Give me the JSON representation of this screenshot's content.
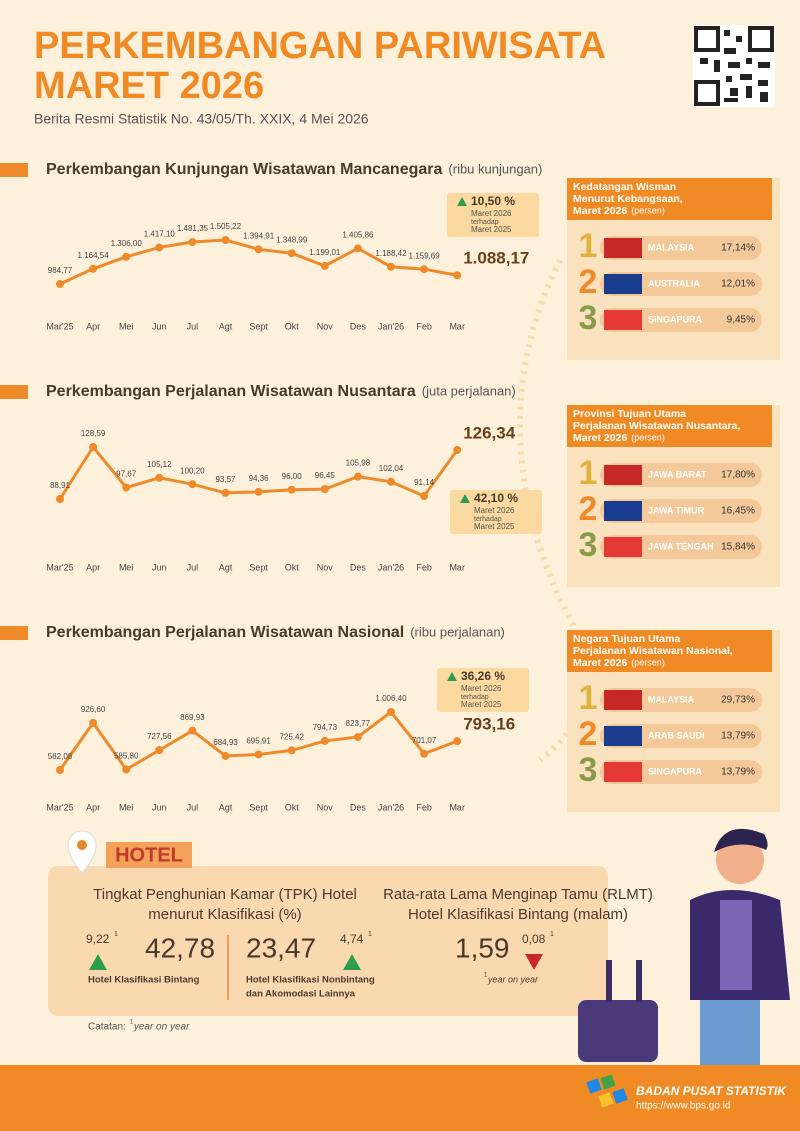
{
  "header": {
    "title_lines": [
      "PERKEMBANGAN PARIWISATA",
      "MARET 2026"
    ],
    "subtitle": "Berita Resmi Statistik No. 43/05/Th. XXIX, 4 Mei 2026"
  },
  "chart_data": [
    {
      "type": "line",
      "title": "Perkembangan Kunjungan Wisatawan Mancanegara",
      "unit": "(ribu kunjungan)",
      "color": "#ee8a2a",
      "categories": [
        "Mar'25",
        "Apr",
        "Mei",
        "Jun",
        "Jul",
        "Agt",
        "Sept",
        "Okt",
        "Nov",
        "Des",
        "Jan'26",
        "Feb",
        "Mar"
      ],
      "values": [
        984.77,
        1164.54,
        1306.0,
        1417.1,
        1481.35,
        1505.22,
        1394.91,
        1348.99,
        1199.01,
        1405.86,
        1188.42,
        1159.69,
        1088.17
      ],
      "value_labels": [
        "984,77",
        "1.164,54",
        "1.306,00",
        "1.417,10",
        "1.481,35",
        "1.505,22",
        "1.394,91",
        "1.348,99",
        "1.199,01",
        "1.405,86",
        "1.188,42",
        "1.159,69",
        "1.088,17"
      ],
      "change": {
        "label": "10,50 %",
        "lines": [
          "Maret 2026",
          "terhadap",
          "Maret 2025"
        ]
      }
    },
    {
      "type": "line",
      "title": "Perkembangan Perjalanan Wisatawan Nusantara",
      "unit": "(juta perjalanan)",
      "color": "#ee8a2a",
      "categories": [
        "Mar'25",
        "Apr",
        "Mei",
        "Jun",
        "Jul",
        "Agt",
        "Sept",
        "Okt",
        "Nov",
        "Des",
        "Jan'26",
        "Feb",
        "Mar"
      ],
      "values": [
        88.91,
        128.59,
        97.67,
        105.12,
        100.2,
        93.57,
        94.36,
        96.0,
        96.45,
        105.98,
        102.04,
        91.14,
        126.34
      ],
      "value_labels": [
        "88,91",
        "128,59",
        "97,67",
        "105,12",
        "100,20",
        "93,57",
        "94,36",
        "96,00",
        "96,45",
        "105,98",
        "102,04",
        "91,14",
        "126,34"
      ],
      "change": {
        "label": "42,10 %",
        "lines": [
          "Maret 2026",
          "terhadap",
          "Maret 2025"
        ]
      }
    },
    {
      "type": "line",
      "title": "Perkembangan Perjalanan Wisatawan Nasional",
      "unit": "(ribu perjalanan)",
      "color": "#ee8a2a",
      "categories": [
        "Mar'25",
        "Apr",
        "Mei",
        "Jun",
        "Jul",
        "Agt",
        "Sept",
        "Okt",
        "Nov",
        "Des",
        "Jan'26",
        "Feb",
        "Mar"
      ],
      "values": [
        582.08,
        926.6,
        585.8,
        727.56,
        869.93,
        684.93,
        695.91,
        725.42,
        794.73,
        823.77,
        1006.4,
        701.07,
        793.16
      ],
      "value_labels": [
        "582,08",
        "926,60",
        "585,80",
        "727,56",
        "869,93",
        "684,93",
        "695,91",
        "725,42",
        "794,73",
        "823,77",
        "1.006,40",
        "701,07",
        "793,16"
      ],
      "change": {
        "label": "36,26 %",
        "lines": [
          "Maret 2026",
          "terhadap",
          "Maret 2025"
        ]
      }
    }
  ],
  "panels": [
    {
      "title_lines": [
        "Kedatangan Wisman",
        "Menurut Kebangsaan,",
        "Maret 2026"
      ],
      "unit": "(persen)",
      "items": [
        {
          "rank": "1",
          "name": "MALAYSIA",
          "share": "17,14%"
        },
        {
          "rank": "2",
          "name": "AUSTRALIA",
          "share": "12,01%"
        },
        {
          "rank": "3",
          "name": "SINGAPURA",
          "share": "9,45%"
        }
      ]
    },
    {
      "title_lines": [
        "Provinsi Tujuan Utama",
        "Perjalanan Wisatawan Nusantara,",
        "Maret 2026"
      ],
      "unit": "(persen)",
      "items": [
        {
          "rank": "1",
          "name": "JAWA BARAT",
          "share": "17,80%"
        },
        {
          "rank": "2",
          "name": "JAWA TIMUR",
          "share": "16,45%"
        },
        {
          "rank": "3",
          "name": "JAWA TENGAH",
          "share": "15,84%"
        }
      ]
    },
    {
      "title_lines": [
        "Negara Tujuan Utama",
        "Perjalanan Wisatawan Nasional,",
        "Maret 2026"
      ],
      "unit": "(persen)",
      "items": [
        {
          "rank": "1",
          "name": "MALAYSIA",
          "share": "29,73%"
        },
        {
          "rank": "2",
          "name": "ARAB SAUDI",
          "share": "13,79%"
        },
        {
          "rank": "3",
          "name": "SINGAPURA",
          "share": "13,79%"
        }
      ]
    }
  ],
  "hotel": {
    "badge": "HOTEL",
    "footnote_mark": "1",
    "tpk_title_lines": [
      "Tingkat Penghunian Kamar (TPK) Hotel",
      "menurut Klasifikasi (%)"
    ],
    "bintang": {
      "value": "42,78",
      "change": "9,22",
      "label_lines": [
        "Hotel Klasifikasi Bintang"
      ]
    },
    "nonbintang": {
      "value": "23,47",
      "change": "4,74",
      "label_lines": [
        "Hotel Klasifikasi Nonbintang",
        "dan Akomodasi Lainnya"
      ]
    },
    "rlmt_title_lines": [
      "Rata-rata Lama Menginap Tamu (RLMT)",
      "Hotel Klasifikasi Bintang (malam)"
    ],
    "rlmt": {
      "value": "1,59",
      "change": "0,08",
      "note": "year on year"
    },
    "catatan": "Catatan:",
    "catatan_note": "year on year"
  },
  "footer": {
    "org": "BADAN PUSAT STATISTIK",
    "url": "https://www.bps.go.id"
  }
}
